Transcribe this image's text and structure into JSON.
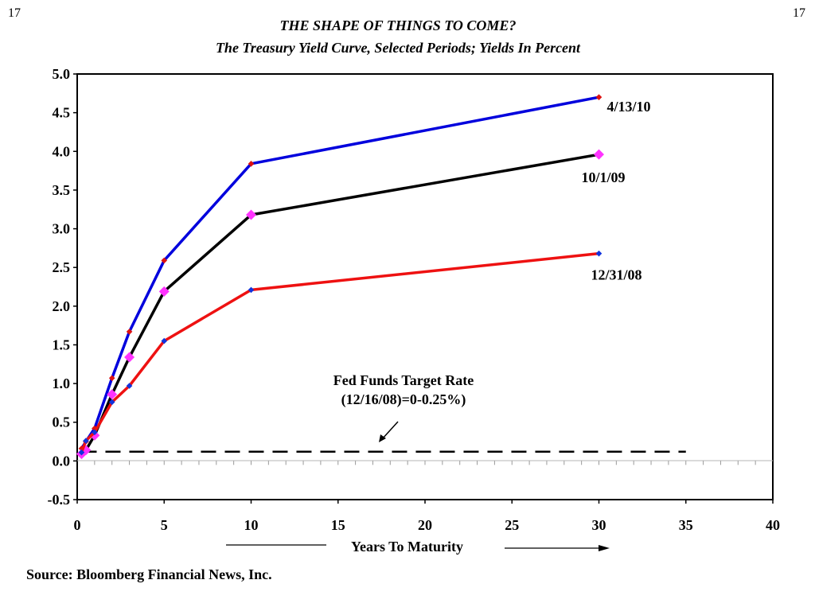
{
  "page_number_left": "17",
  "page_number_right": "17",
  "source": "Source: Bloomberg Financial News, Inc.",
  "chart_data": {
    "type": "line",
    "title": "THE SHAPE OF THINGS TO COME?",
    "subtitle": "The Treasury Yield Curve, Selected Periods; Yields In Percent",
    "xlabel": "Years To Maturity",
    "ylabel": "",
    "xlim": [
      0,
      40
    ],
    "ylim": [
      -0.5,
      5.0
    ],
    "x_ticks": [
      "0",
      "5",
      "10",
      "15",
      "20",
      "25",
      "30",
      "35",
      "40"
    ],
    "y_ticks": [
      "5.0",
      "4.5",
      "4.0",
      "3.5",
      "3.0",
      "2.5",
      "2.0",
      "1.5",
      "1.0",
      "0.5",
      "0.0",
      "-0.5"
    ],
    "grid": false,
    "series": [
      {
        "name": "4/13/10",
        "color": "#0000dd",
        "marker_color": "#dd1111",
        "marker": "diamond-small",
        "x": [
          0.25,
          0.5,
          1,
          2,
          3,
          5,
          10,
          30
        ],
        "y": [
          0.16,
          0.25,
          0.42,
          1.07,
          1.67,
          2.59,
          3.84,
          4.7
        ]
      },
      {
        "name": "10/1/09",
        "color": "#000000",
        "marker_color": "#ff33ff",
        "marker": "diamond-large",
        "x": [
          0.25,
          0.5,
          1,
          2,
          3,
          5,
          10,
          30
        ],
        "y": [
          0.09,
          0.14,
          0.33,
          0.86,
          1.34,
          2.19,
          3.18,
          3.96
        ]
      },
      {
        "name": "12/31/08",
        "color": "#ee1111",
        "marker_color": "#1133dd",
        "marker": "diamond-small",
        "x": [
          0.25,
          0.5,
          1,
          2,
          3,
          5,
          10,
          30
        ],
        "y": [
          0.11,
          0.26,
          0.37,
          0.76,
          0.97,
          1.55,
          2.21,
          2.68
        ]
      }
    ],
    "reference_line": {
      "label": "Fed Funds Target Rate",
      "label2": "(12/16/08)=0-0.25%)",
      "y": 0.12,
      "x": [
        0.25,
        35
      ],
      "style": "dashed",
      "color": "#000000"
    }
  }
}
